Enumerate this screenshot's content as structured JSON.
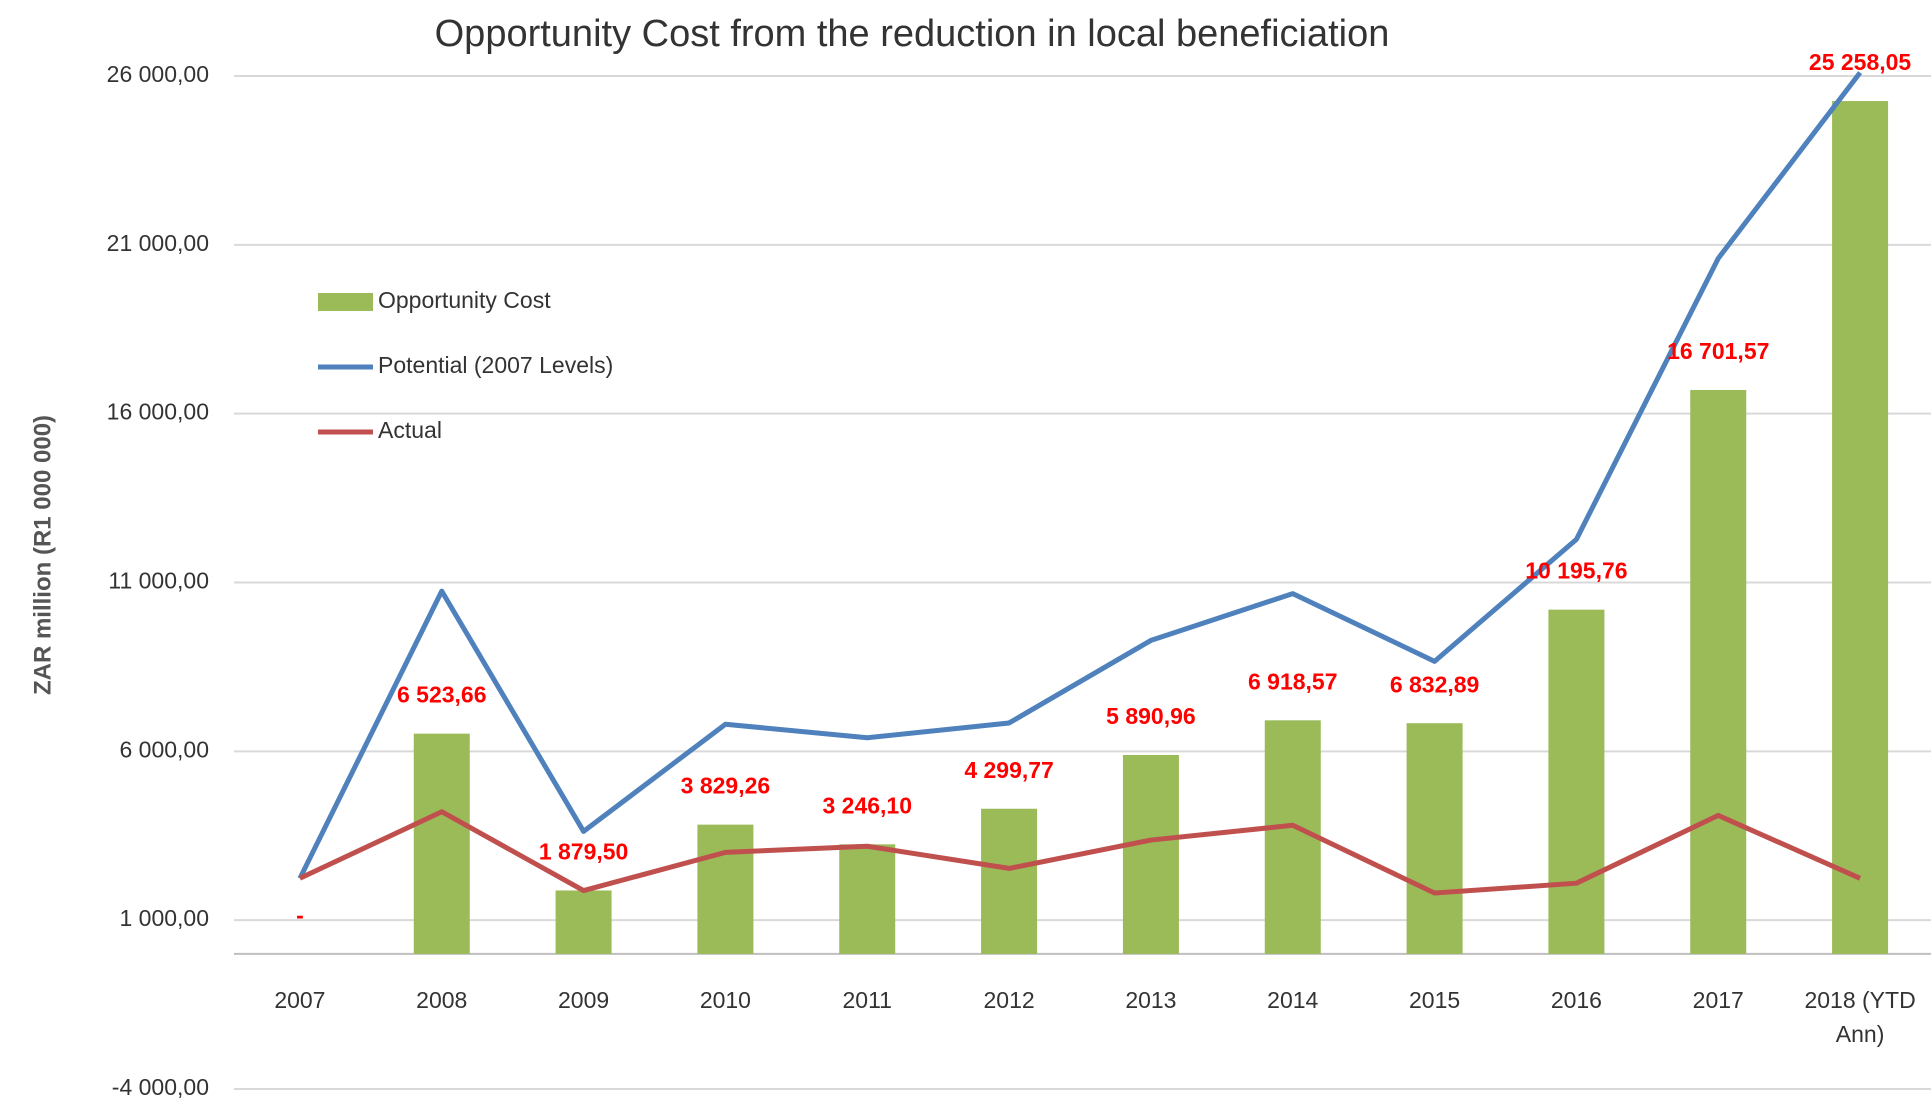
{
  "chart_data": {
    "type": "bar",
    "title": "Opportunity Cost from the reduction in local beneficiation",
    "y_label": "ZAR million (R1 000 000)",
    "categories": [
      "2007",
      "2008",
      "2009",
      "2010",
      "2011",
      "2012",
      "2013",
      "2014",
      "2015",
      "2016",
      "2017",
      "2018 (YTD Ann)"
    ],
    "series": [
      {
        "name": "Opportunity Cost",
        "type": "bar",
        "color": "#9bbb59",
        "values": [
          0,
          6523.66,
          1879.5,
          3829.26,
          3246.1,
          4299.77,
          5890.96,
          6918.57,
          6832.89,
          10195.76,
          16701.57,
          25258.05
        ],
        "value_labels": [
          "-",
          "6 523,66",
          "1 879,50",
          "3 829,26",
          "3 246,10",
          "4 299,77",
          "5 890,96",
          "6 918,57",
          "6 832,89",
          "10 195,76",
          "16 701,57",
          "25 258,05"
        ],
        "label_color": "#ff0000"
      },
      {
        "name": "Potential (2007 Levels)",
        "type": "line",
        "color": "#4f81bd",
        "values": [
          2240,
          10745,
          3628,
          6803,
          6402,
          6840,
          9285,
          10672,
          8665,
          12278,
          20600,
          26100
        ]
      },
      {
        "name": "Actual",
        "type": "line",
        "color": "#c0504d",
        "values": [
          2240,
          4212,
          1876,
          3008,
          3190,
          2533,
          3372,
          3810,
          1803,
          2095,
          4102,
          2240
        ]
      }
    ],
    "ylim": [
      -4000,
      26000
    ],
    "yticks": [
      {
        "value": -4000,
        "label": "-4 000,00"
      },
      {
        "value": 1000,
        "label": "1 000,00"
      },
      {
        "value": 6000,
        "label": "6 000,00"
      },
      {
        "value": 11000,
        "label": "11 000,00"
      },
      {
        "value": 16000,
        "label": "16 000,00"
      },
      {
        "value": 21000,
        "label": "21 000,00"
      },
      {
        "value": 26000,
        "label": "26 000,00"
      }
    ],
    "grid": true,
    "legend": "upper left"
  }
}
